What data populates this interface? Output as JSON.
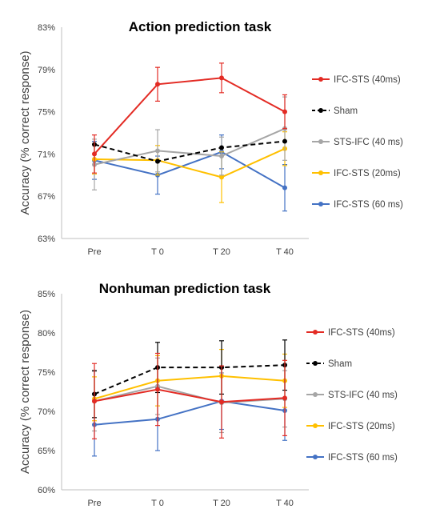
{
  "chart_data": [
    {
      "type": "line",
      "title": "Action prediction task",
      "xlabel": "",
      "ylabel": "Accuracy (% correct response)",
      "categories": [
        "Pre",
        "T 0",
        "T 20",
        "T 40"
      ],
      "yticks": [
        "63%",
        "67%",
        "71%",
        "75%",
        "79%",
        "83%"
      ],
      "ylim": [
        63,
        83
      ],
      "grid": false,
      "legend_position": "right",
      "series": [
        {
          "name": "IFC-STS (40ms)",
          "color": "#e32b24",
          "dashed": false,
          "values": [
            71.0,
            77.6,
            78.2,
            75.0
          ],
          "errors": [
            1.8,
            1.6,
            1.4,
            1.6
          ]
        },
        {
          "name": "Sham",
          "color": "#000000",
          "dashed": true,
          "values": [
            71.9,
            70.3,
            71.6,
            72.2
          ],
          "errors": [
            0,
            0,
            0,
            0
          ]
        },
        {
          "name": "STS-IFC (40 ms)",
          "color": "#a6a6a6",
          "dashed": false,
          "values": [
            70.0,
            71.3,
            70.8,
            73.4
          ],
          "errors": [
            2.4,
            2.0,
            1.8,
            3.0
          ]
        },
        {
          "name": "IFC-STS (20ms)",
          "color": "#ffc000",
          "dashed": false,
          "values": [
            70.5,
            70.4,
            68.8,
            71.5
          ],
          "errors": [
            1.4,
            1.4,
            2.4,
            1.6
          ]
        },
        {
          "name": "IFC-STS (60 ms)",
          "color": "#4472c4",
          "dashed": false,
          "values": [
            70.4,
            69.0,
            71.2,
            67.8
          ],
          "errors": [
            1.8,
            1.8,
            1.6,
            2.2
          ]
        }
      ]
    },
    {
      "type": "line",
      "title": "Nonhuman prediction task",
      "xlabel": "",
      "ylabel": "Accuracy (% correct response)",
      "categories": [
        "Pre",
        "T 0",
        "T 20",
        "T 40"
      ],
      "yticks": [
        "60%",
        "65%",
        "70%",
        "75%",
        "80%",
        "85%"
      ],
      "ylim": [
        60,
        85
      ],
      "grid": false,
      "legend_position": "right",
      "series": [
        {
          "name": "IFC-STS (40ms)",
          "color": "#e32b24",
          "dashed": false,
          "values": [
            71.3,
            72.8,
            71.2,
            71.7
          ],
          "errors": [
            4.8,
            4.6,
            4.6,
            4.8
          ]
        },
        {
          "name": "Sham",
          "color": "#000000",
          "dashed": true,
          "values": [
            72.2,
            75.6,
            75.6,
            75.9
          ],
          "errors": [
            3.0,
            3.2,
            3.4,
            3.2
          ]
        },
        {
          "name": "STS-IFC (40 ms)",
          "color": "#a6a6a6",
          "dashed": false,
          "values": [
            71.3,
            73.2,
            71.1,
            71.6
          ],
          "errors": [
            3.8,
            3.6,
            3.8,
            3.6
          ]
        },
        {
          "name": "IFC-STS (20ms)",
          "color": "#ffc000",
          "dashed": false,
          "values": [
            71.6,
            73.9,
            74.5,
            73.9
          ],
          "errors": [
            2.8,
            3.2,
            3.4,
            3.4
          ]
        },
        {
          "name": "IFC-STS (60 ms)",
          "color": "#4472c4",
          "dashed": false,
          "values": [
            68.3,
            69.0,
            71.3,
            70.1
          ],
          "errors": [
            4.0,
            4.0,
            3.6,
            3.8
          ]
        }
      ]
    }
  ]
}
